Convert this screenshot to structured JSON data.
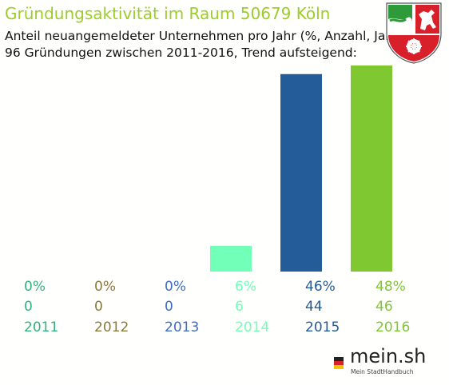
{
  "header": {
    "title": "Gründungsaktivität im Raum 50679 Köln",
    "subtitle_line1": "Anteil neuangemeldeter Unternehmen pro Jahr (%, Anzahl, Jahr)",
    "subtitle_line2": "96 Gründungen zwischen 2011-2016, Trend aufsteigend:"
  },
  "colors": {
    "title": "#9ccc2a",
    "bars": [
      "#33b37e",
      "#8a7a3e",
      "#3f6ec2",
      "#72ffb8",
      "#245b99",
      "#80c832"
    ]
  },
  "chart_data": {
    "type": "bar",
    "categories": [
      "2011",
      "2012",
      "2013",
      "2014",
      "2015",
      "2016"
    ],
    "percent_labels": [
      "0%",
      "0%",
      "0%",
      "6%",
      "46%",
      "48%"
    ],
    "values": [
      0,
      0,
      0,
      6,
      44,
      46
    ],
    "percent_values": [
      0,
      0,
      0,
      6,
      46,
      48
    ],
    "title": "Gründungsaktivität im Raum 50679 Köln",
    "xlabel": "",
    "ylabel": ""
  },
  "branding": {
    "logo_text": "mein.sh",
    "logo_tagline": "Mein StadtHandbuch",
    "crest_icon": "nrw-coat-of-arms-icon"
  }
}
